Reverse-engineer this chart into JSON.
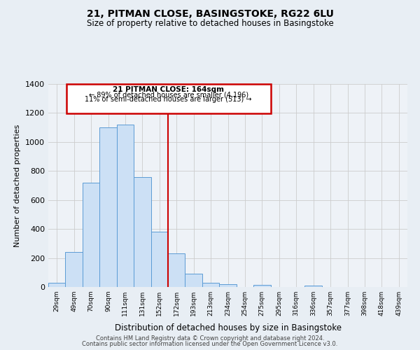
{
  "title1": "21, PITMAN CLOSE, BASINGSTOKE, RG22 6LU",
  "title2": "Size of property relative to detached houses in Basingstoke",
  "xlabel": "Distribution of detached houses by size in Basingstoke",
  "ylabel": "Number of detached properties",
  "bar_labels": [
    "29sqm",
    "49sqm",
    "70sqm",
    "90sqm",
    "111sqm",
    "131sqm",
    "152sqm",
    "172sqm",
    "193sqm",
    "213sqm",
    "234sqm",
    "254sqm",
    "275sqm",
    "295sqm",
    "316sqm",
    "336sqm",
    "357sqm",
    "377sqm",
    "398sqm",
    "418sqm",
    "439sqm"
  ],
  "bar_heights": [
    30,
    240,
    720,
    1100,
    1120,
    760,
    380,
    230,
    90,
    30,
    20,
    0,
    15,
    0,
    0,
    10,
    0,
    0,
    0,
    0,
    0
  ],
  "bar_color": "#cce0f5",
  "bar_edge_color": "#5b9bd5",
  "vline_color": "#cc0000",
  "box_color": "#cc0000",
  "annotation_line1": "21 PITMAN CLOSE: 164sqm",
  "annotation_line2": "← 89% of detached houses are smaller (4,196)",
  "annotation_line3": "11% of semi-detached houses are larger (513) →",
  "ylim": [
    0,
    1400
  ],
  "yticks": [
    0,
    200,
    400,
    600,
    800,
    1000,
    1200,
    1400
  ],
  "footer1": "Contains HM Land Registry data © Crown copyright and database right 2024.",
  "footer2": "Contains public sector information licensed under the Open Government Licence v3.0.",
  "background_color": "#e8eef4",
  "plot_background": "#eef2f7",
  "grid_color": "#cccccc",
  "vline_x_index": 7.0
}
